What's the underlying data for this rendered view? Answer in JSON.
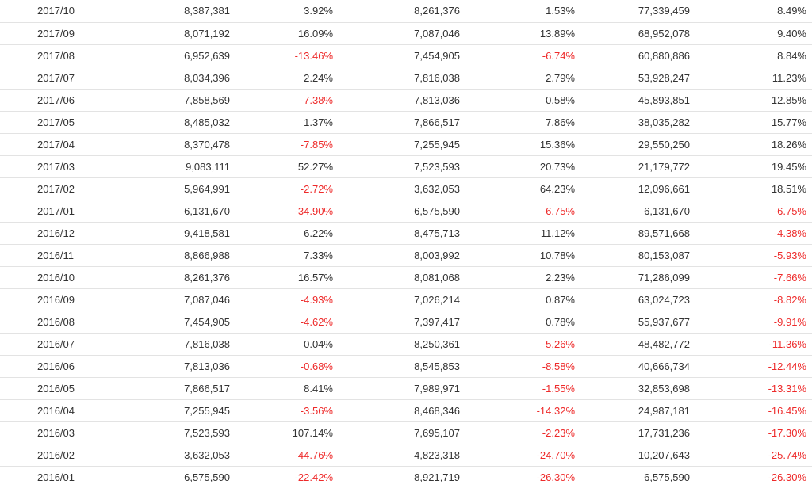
{
  "rows": [
    [
      "2017/10",
      "8,387,381",
      "3.92%",
      "8,261,376",
      "1.53%",
      "77,339,459",
      "8.49%"
    ],
    [
      "2017/09",
      "8,071,192",
      "16.09%",
      "7,087,046",
      "13.89%",
      "68,952,078",
      "9.40%"
    ],
    [
      "2017/08",
      "6,952,639",
      "-13.46%",
      "7,454,905",
      "-6.74%",
      "60,880,886",
      "8.84%"
    ],
    [
      "2017/07",
      "8,034,396",
      "2.24%",
      "7,816,038",
      "2.79%",
      "53,928,247",
      "11.23%"
    ],
    [
      "2017/06",
      "7,858,569",
      "-7.38%",
      "7,813,036",
      "0.58%",
      "45,893,851",
      "12.85%"
    ],
    [
      "2017/05",
      "8,485,032",
      "1.37%",
      "7,866,517",
      "7.86%",
      "38,035,282",
      "15.77%"
    ],
    [
      "2017/04",
      "8,370,478",
      "-7.85%",
      "7,255,945",
      "15.36%",
      "29,550,250",
      "18.26%"
    ],
    [
      "2017/03",
      "9,083,111",
      "52.27%",
      "7,523,593",
      "20.73%",
      "21,179,772",
      "19.45%"
    ],
    [
      "2017/02",
      "5,964,991",
      "-2.72%",
      "3,632,053",
      "64.23%",
      "12,096,661",
      "18.51%"
    ],
    [
      "2017/01",
      "6,131,670",
      "-34.90%",
      "6,575,590",
      "-6.75%",
      "6,131,670",
      "-6.75%"
    ],
    [
      "2016/12",
      "9,418,581",
      "6.22%",
      "8,475,713",
      "11.12%",
      "89,571,668",
      "-4.38%"
    ],
    [
      "2016/11",
      "8,866,988",
      "7.33%",
      "8,003,992",
      "10.78%",
      "80,153,087",
      "-5.93%"
    ],
    [
      "2016/10",
      "8,261,376",
      "16.57%",
      "8,081,068",
      "2.23%",
      "71,286,099",
      "-7.66%"
    ],
    [
      "2016/09",
      "7,087,046",
      "-4.93%",
      "7,026,214",
      "0.87%",
      "63,024,723",
      "-8.82%"
    ],
    [
      "2016/08",
      "7,454,905",
      "-4.62%",
      "7,397,417",
      "0.78%",
      "55,937,677",
      "-9.91%"
    ],
    [
      "2016/07",
      "7,816,038",
      "0.04%",
      "8,250,361",
      "-5.26%",
      "48,482,772",
      "-11.36%"
    ],
    [
      "2016/06",
      "7,813,036",
      "-0.68%",
      "8,545,853",
      "-8.58%",
      "40,666,734",
      "-12.44%"
    ],
    [
      "2016/05",
      "7,866,517",
      "8.41%",
      "7,989,971",
      "-1.55%",
      "32,853,698",
      "-13.31%"
    ],
    [
      "2016/04",
      "7,255,945",
      "-3.56%",
      "8,468,346",
      "-14.32%",
      "24,987,181",
      "-16.45%"
    ],
    [
      "2016/03",
      "7,523,593",
      "107.14%",
      "7,695,107",
      "-2.23%",
      "17,731,236",
      "-17.30%"
    ],
    [
      "2016/02",
      "3,632,053",
      "-44.76%",
      "4,823,318",
      "-24.70%",
      "10,207,643",
      "-25.74%"
    ],
    [
      "2016/01",
      "6,575,590",
      "-22.42%",
      "8,921,719",
      "-26.30%",
      "6,575,590",
      "-26.30%"
    ]
  ],
  "colors": {
    "text": "#333333",
    "negative": "#ee2a2a",
    "divider": "#e3e3e3"
  }
}
